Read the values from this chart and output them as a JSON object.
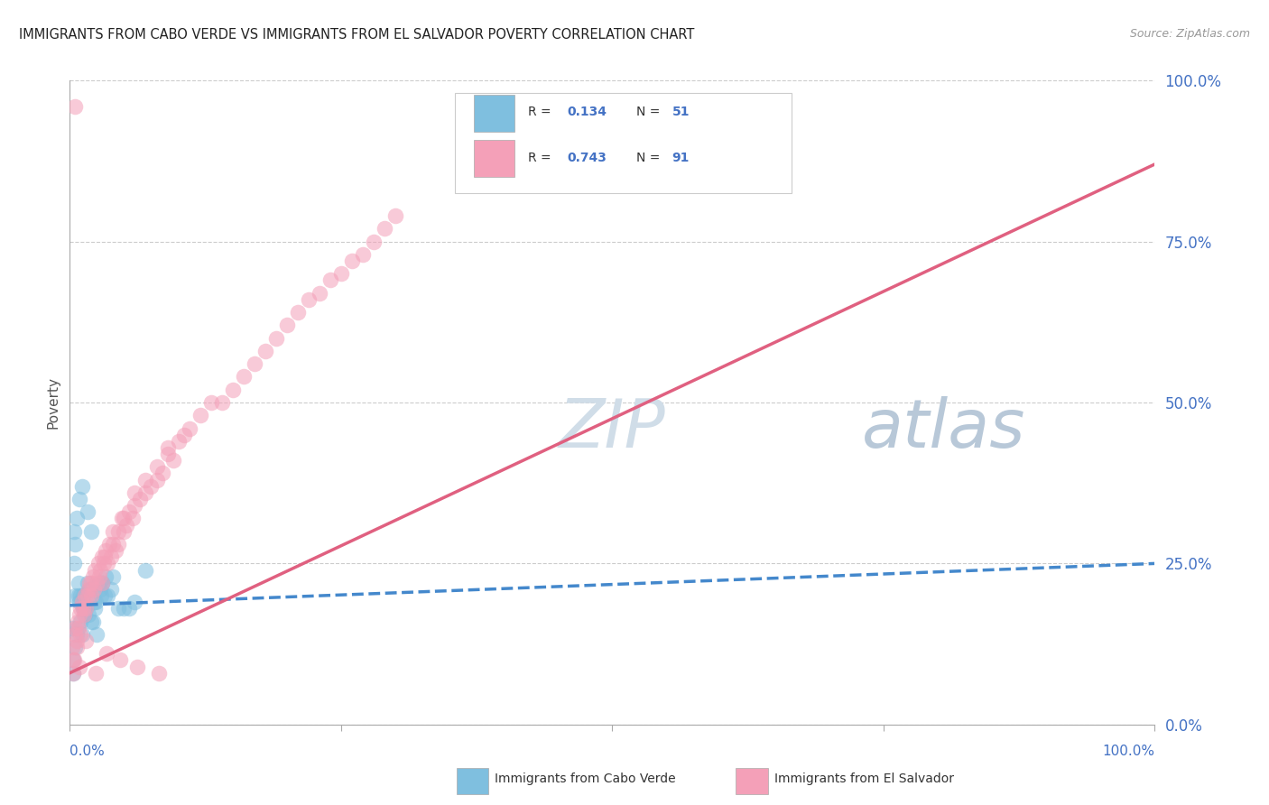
{
  "title": "IMMIGRANTS FROM CABO VERDE VS IMMIGRANTS FROM EL SALVADOR POVERTY CORRELATION CHART",
  "source": "Source: ZipAtlas.com",
  "ylabel": "Poverty",
  "ytick_labels": [
    "0.0%",
    "25.0%",
    "50.0%",
    "75.0%",
    "100.0%"
  ],
  "ytick_values": [
    0,
    25,
    50,
    75,
    100
  ],
  "xtick_values": [
    0,
    25,
    50,
    75,
    100
  ],
  "xlim": [
    0,
    100
  ],
  "ylim": [
    0,
    100
  ],
  "legend_r1": "R = 0.134",
  "legend_n1": "N = 51",
  "legend_r2": "R = 0.743",
  "legend_n2": "N = 91",
  "label1": "Immigrants from Cabo Verde",
  "label2": "Immigrants from El Salvador",
  "color1": "#7fbfdf",
  "color2": "#f4a0b8",
  "trendline1_color": "#4488cc",
  "trendline2_color": "#e06080",
  "watermark_zip": "ZIP",
  "watermark_atlas": "atlas",
  "watermark_color_zip": "#d0dff0",
  "watermark_color_atlas": "#b8cce0",
  "background_color": "#ffffff",
  "cabo_verde_x": [
    0.2,
    0.3,
    0.3,
    0.4,
    0.5,
    0.5,
    0.5,
    0.6,
    0.7,
    0.8,
    0.8,
    0.9,
    1.0,
    1.0,
    1.1,
    1.2,
    1.2,
    1.3,
    1.4,
    1.5,
    1.6,
    1.7,
    1.8,
    1.9,
    2.0,
    2.1,
    2.2,
    2.3,
    2.4,
    2.5,
    2.7,
    2.8,
    2.9,
    3.0,
    3.2,
    3.3,
    3.5,
    3.8,
    4.0,
    4.5,
    5.0,
    5.5,
    6.0,
    7.0,
    0.4,
    0.6,
    0.9,
    1.1,
    1.6,
    2.0,
    3.0
  ],
  "cabo_verde_y": [
    15,
    10,
    8,
    25,
    20,
    12,
    28,
    14,
    15,
    20,
    22,
    19,
    20,
    16,
    14,
    20,
    18,
    18,
    17,
    18,
    22,
    17,
    21,
    21,
    16,
    16,
    19,
    18,
    19,
    14,
    22,
    21,
    20,
    22,
    20,
    23,
    20,
    21,
    23,
    18,
    18,
    18,
    19,
    24,
    30,
    32,
    35,
    37,
    33,
    30,
    22
  ],
  "el_salvador_x": [
    0.2,
    0.3,
    0.4,
    0.5,
    0.5,
    0.6,
    0.7,
    0.8,
    0.9,
    1.0,
    1.0,
    1.1,
    1.2,
    1.3,
    1.4,
    1.5,
    1.6,
    1.7,
    1.8,
    2.0,
    2.0,
    2.1,
    2.2,
    2.3,
    2.5,
    2.6,
    2.7,
    2.8,
    3.0,
    3.0,
    3.1,
    3.2,
    3.3,
    3.5,
    3.6,
    3.8,
    4.0,
    4.0,
    4.2,
    4.5,
    4.5,
    4.8,
    5.0,
    5.0,
    5.2,
    5.5,
    5.8,
    6.0,
    6.0,
    6.5,
    7.0,
    7.0,
    7.5,
    8.0,
    8.0,
    8.5,
    9.0,
    9.0,
    9.5,
    10.0,
    10.5,
    11.0,
    12.0,
    13.0,
    14.0,
    15.0,
    16.0,
    17.0,
    18.0,
    19.0,
    20.0,
    21.0,
    22.0,
    23.0,
    24.0,
    25.0,
    26.0,
    27.0,
    28.0,
    29.0,
    30.0,
    0.3,
    0.6,
    0.9,
    1.5,
    2.4,
    3.4,
    4.6,
    6.2,
    8.2,
    0.5
  ],
  "el_salvador_y": [
    12,
    8,
    10,
    15,
    14,
    13,
    16,
    15,
    17,
    18,
    14,
    19,
    18,
    17,
    20,
    18,
    20,
    21,
    22,
    20,
    22,
    23,
    21,
    24,
    22,
    25,
    23,
    24,
    26,
    22,
    25,
    26,
    27,
    25,
    28,
    26,
    28,
    30,
    27,
    30,
    28,
    32,
    30,
    32,
    31,
    33,
    32,
    34,
    36,
    35,
    36,
    38,
    37,
    38,
    40,
    39,
    42,
    43,
    41,
    44,
    45,
    46,
    48,
    50,
    50,
    52,
    54,
    56,
    58,
    60,
    62,
    64,
    66,
    67,
    69,
    70,
    72,
    73,
    75,
    77,
    79,
    10,
    12,
    9,
    13,
    8,
    11,
    10,
    9,
    8,
    96
  ],
  "trendline1_x": [
    0,
    100
  ],
  "trendline1_y": [
    18.5,
    25.0
  ],
  "trendline2_x": [
    0,
    100
  ],
  "trendline2_y": [
    8.0,
    87.0
  ]
}
